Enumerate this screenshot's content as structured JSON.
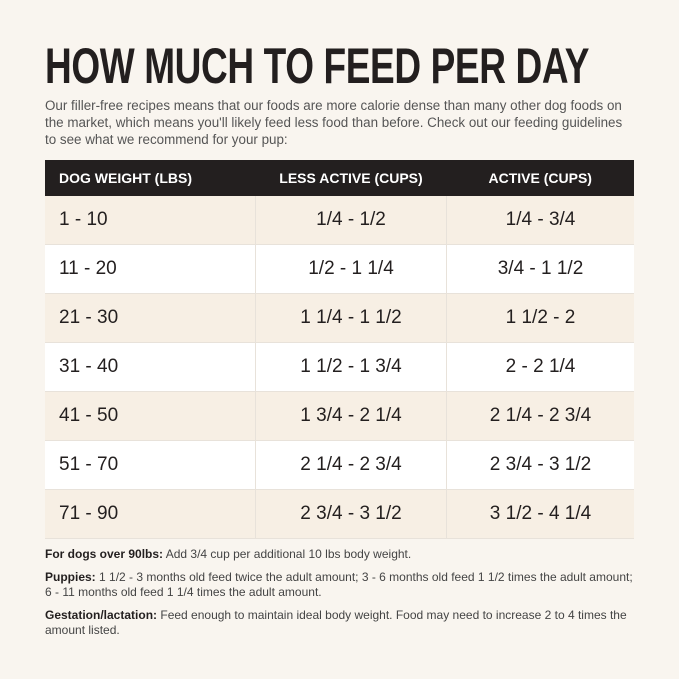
{
  "header": {
    "title": "HOW MUCH TO FEED PER DAY",
    "intro": "Our filler-free recipes means that our foods are more calorie dense than many other dog foods on the market, which means you'll likely feed less food than before. Check out our feeding guidelines to see what we recommend for your pup:"
  },
  "table": {
    "columns": [
      "DOG WEIGHT (LBS)",
      "LESS ACTIVE (CUPS)",
      "ACTIVE (CUPS)"
    ],
    "rows": [
      [
        "1 - 10",
        "1/4 - 1/2",
        "1/4 - 3/4"
      ],
      [
        "11 - 20",
        "1/2 - 1 1/4",
        "3/4 - 1 1/2"
      ],
      [
        "21 - 30",
        "1 1/4 - 1 1/2",
        "1 1/2 - 2"
      ],
      [
        "31 - 40",
        "1 1/2 - 1 3/4",
        "2 - 2 1/4"
      ],
      [
        "41 - 50",
        "1 3/4 - 2 1/4",
        "2 1/4 - 2 3/4"
      ],
      [
        "51 - 70",
        "2 1/4 - 2 3/4",
        "2 3/4 - 3 1/2"
      ],
      [
        "71 - 90",
        "2 3/4 - 3 1/2",
        "3 1/2 - 4 1/4"
      ]
    ]
  },
  "notes": [
    {
      "label": "For dogs over 90lbs:",
      "text": "Add 3/4 cup per additional 10 lbs body weight."
    },
    {
      "label": "Puppies:",
      "text": "1 1/2 - 3 months old feed twice the adult amount; 3 - 6 months old feed 1 1/2 times the adult amount; 6 - 11 months old feed 1 1/4 times the adult amount."
    },
    {
      "label": "Gestation/lactation:",
      "text": "Feed enough to maintain ideal body weight. Food may need to increase 2 to 4 times the amount listed."
    }
  ]
}
